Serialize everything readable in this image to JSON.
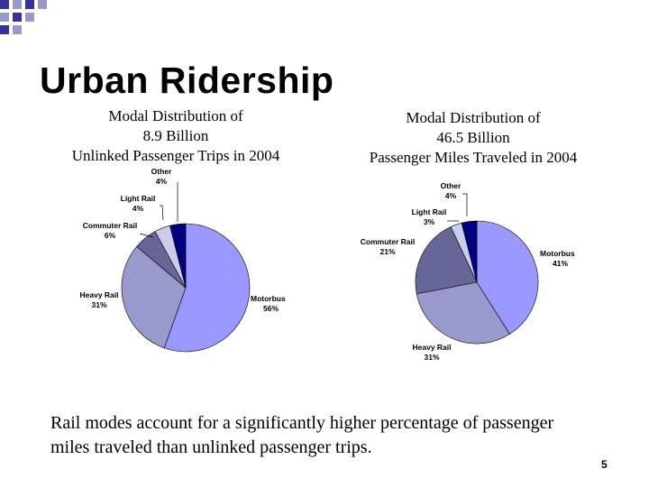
{
  "slide": {
    "title": "Urban Ridership",
    "caption": "Rail modes account for a significantly higher percentage of passenger miles traveled than unlinked passenger trips.",
    "page_number": "5"
  },
  "chart_data": [
    {
      "type": "pie",
      "title": [
        "Modal Distribution of",
        "8.9 Billion",
        "Unlinked Passenger Trips in 2004"
      ],
      "slices": [
        {
          "label": "Motorbus",
          "value_label": "56%",
          "value": 56,
          "color": "#9999ff"
        },
        {
          "label": "Heavy Rail",
          "value_label": "31%",
          "value": 31,
          "color": "#9999cc"
        },
        {
          "label": "Commuter Rail",
          "value_label": "6%",
          "value": 6,
          "color": "#666699"
        },
        {
          "label": "Light Rail",
          "value_label": "4%",
          "value": 4,
          "color": "#ccccee"
        },
        {
          "label": "Other",
          "value_label": "4%",
          "value": 4,
          "color": "#000080"
        }
      ]
    },
    {
      "type": "pie",
      "title": [
        "Modal Distribution of",
        "46.5 Billion",
        "Passenger Miles Traveled in 2004"
      ],
      "slices": [
        {
          "label": "Motorbus",
          "value_label": "41%",
          "value": 41,
          "color": "#9999ff"
        },
        {
          "label": "Heavy Rail",
          "value_label": "31%",
          "value": 31,
          "color": "#9999cc"
        },
        {
          "label": "Commuter Rail",
          "value_label": "21%",
          "value": 21,
          "color": "#666699"
        },
        {
          "label": "Light Rail",
          "value_label": "3%",
          "value": 3,
          "color": "#ccccee"
        },
        {
          "label": "Other",
          "value_label": "4%",
          "value": 4,
          "color": "#000080"
        }
      ]
    }
  ],
  "colors": {
    "corner_dark": "#333399",
    "corner_light": "#9999cc"
  }
}
